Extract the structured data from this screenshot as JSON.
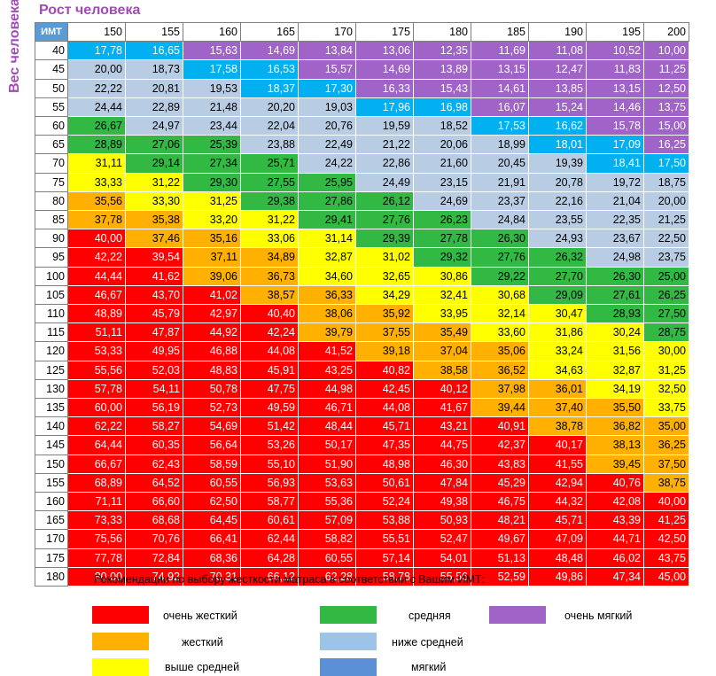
{
  "chart_data": {
    "type": "table",
    "title_top": "Рост человека",
    "title_side": "Вес человека",
    "corner_label": "ИМТ",
    "heights": [
      "150",
      "155",
      "160",
      "165",
      "170",
      "175",
      "180",
      "185",
      "190",
      "195",
      "200"
    ],
    "weights": [
      "40",
      "45",
      "50",
      "55",
      "60",
      "65",
      "70",
      "75",
      "80",
      "85",
      "90",
      "95",
      "100",
      "105",
      "110",
      "115",
      "120",
      "125",
      "130",
      "135",
      "140",
      "145",
      "150",
      "155",
      "160",
      "165",
      "170",
      "175",
      "180"
    ],
    "values": [
      [
        "17,78",
        "16,65",
        "15,63",
        "14,69",
        "13,84",
        "13,06",
        "12,35",
        "11,69",
        "11,08",
        "10,52",
        "10,00"
      ],
      [
        "20,00",
        "18,73",
        "17,58",
        "16,53",
        "15,57",
        "14,69",
        "13,89",
        "13,15",
        "12,47",
        "11,83",
        "11,25"
      ],
      [
        "22,22",
        "20,81",
        "19,53",
        "18,37",
        "17,30",
        "16,33",
        "15,43",
        "14,61",
        "13,85",
        "13,15",
        "12,50"
      ],
      [
        "24,44",
        "22,89",
        "21,48",
        "20,20",
        "19,03",
        "17,96",
        "16,98",
        "16,07",
        "15,24",
        "14,46",
        "13,75"
      ],
      [
        "26,67",
        "24,97",
        "23,44",
        "22,04",
        "20,76",
        "19,59",
        "18,52",
        "17,53",
        "16,62",
        "15,78",
        "15,00"
      ],
      [
        "28,89",
        "27,06",
        "25,39",
        "23,88",
        "22,49",
        "21,22",
        "20,06",
        "18,99",
        "18,01",
        "17,09",
        "16,25"
      ],
      [
        "31,11",
        "29,14",
        "27,34",
        "25,71",
        "24,22",
        "22,86",
        "21,60",
        "20,45",
        "19,39",
        "18,41",
        "17,50"
      ],
      [
        "33,33",
        "31,22",
        "29,30",
        "27,55",
        "25,95",
        "24,49",
        "23,15",
        "21,91",
        "20,78",
        "19,72",
        "18,75"
      ],
      [
        "35,56",
        "33,30",
        "31,25",
        "29,38",
        "27,86",
        "26,12",
        "24,69",
        "23,37",
        "22,16",
        "21,04",
        "20,00"
      ],
      [
        "37,78",
        "35,38",
        "33,20",
        "31,22",
        "29,41",
        "27,76",
        "26,23",
        "24,84",
        "23,55",
        "22,35",
        "21,25"
      ],
      [
        "40,00",
        "37,46",
        "35,16",
        "33,06",
        "31,14",
        "29,39",
        "27,78",
        "26,30",
        "24,93",
        "23,67",
        "22,50"
      ],
      [
        "42,22",
        "39,54",
        "37,11",
        "34,89",
        "32,87",
        "31,02",
        "29,32",
        "27,76",
        "26,32",
        "24,98",
        "23,75"
      ],
      [
        "44,44",
        "41,62",
        "39,06",
        "36,73",
        "34,60",
        "32,65",
        "30,86",
        "29,22",
        "27,70",
        "26,30",
        "25,00"
      ],
      [
        "46,67",
        "43,70",
        "41,02",
        "38,57",
        "36,33",
        "34,29",
        "32,41",
        "30,68",
        "29,09",
        "27,61",
        "26,25"
      ],
      [
        "48,89",
        "45,79",
        "42,97",
        "40,40",
        "38,06",
        "35,92",
        "33,95",
        "32,14",
        "30,47",
        "28,93",
        "27,50"
      ],
      [
        "51,11",
        "47,87",
        "44,92",
        "42,24",
        "39,79",
        "37,55",
        "35,49",
        "33,60",
        "31,86",
        "30,24",
        "28,75"
      ],
      [
        "53,33",
        "49,95",
        "46,88",
        "44,08",
        "41,52",
        "39,18",
        "37,04",
        "35,06",
        "33,24",
        "31,56",
        "30,00"
      ],
      [
        "55,56",
        "52,03",
        "48,83",
        "45,91",
        "43,25",
        "40,82",
        "38,58",
        "36,52",
        "34,63",
        "32,87",
        "31,25"
      ],
      [
        "57,78",
        "54,11",
        "50,78",
        "47,75",
        "44,98",
        "42,45",
        "40,12",
        "37,98",
        "36,01",
        "34,19",
        "32,50"
      ],
      [
        "60,00",
        "56,19",
        "52,73",
        "49,59",
        "46,71",
        "44,08",
        "41,67",
        "39,44",
        "37,40",
        "35,50",
        "33,75"
      ],
      [
        "62,22",
        "58,27",
        "54,69",
        "51,42",
        "48,44",
        "45,71",
        "43,21",
        "40,91",
        "38,78",
        "36,82",
        "35,00"
      ],
      [
        "64,44",
        "60,35",
        "56,64",
        "53,26",
        "50,17",
        "47,35",
        "44,75",
        "42,37",
        "40,17",
        "38,13",
        "36,25"
      ],
      [
        "66,67",
        "62,43",
        "58,59",
        "55,10",
        "51,90",
        "48,98",
        "46,30",
        "43,83",
        "41,55",
        "39,45",
        "37,50"
      ],
      [
        "68,89",
        "64,52",
        "60,55",
        "56,93",
        "53,63",
        "50,61",
        "47,84",
        "45,29",
        "42,94",
        "40,76",
        "38,75"
      ],
      [
        "71,11",
        "66,60",
        "62,50",
        "58,77",
        "55,36",
        "52,24",
        "49,38",
        "46,75",
        "44,32",
        "42,08",
        "40,00"
      ],
      [
        "73,33",
        "68,68",
        "64,45",
        "60,61",
        "57,09",
        "53,88",
        "50,93",
        "48,21",
        "45,71",
        "43,39",
        "41,25"
      ],
      [
        "75,56",
        "70,76",
        "66,41",
        "62,44",
        "58,82",
        "55,51",
        "52,47",
        "49,67",
        "47,09",
        "44,71",
        "42,50"
      ],
      [
        "77,78",
        "72,84",
        "68,36",
        "64,28",
        "60,55",
        "57,14",
        "54,01",
        "51,13",
        "48,48",
        "46,02",
        "43,75"
      ],
      [
        "80,00",
        "74,92",
        "70,31",
        "66,12",
        "62,28",
        "58,78",
        "55,56",
        "52,59",
        "49,86",
        "47,34",
        "45,00"
      ]
    ],
    "colors": [
      [
        "b",
        "b",
        "p",
        "p",
        "p",
        "p",
        "p",
        "p",
        "p",
        "p",
        "p"
      ],
      [
        "lb",
        "lb",
        "b",
        "b",
        "p",
        "p",
        "p",
        "p",
        "p",
        "p",
        "p"
      ],
      [
        "lb",
        "lb",
        "lb",
        "b",
        "b",
        "p",
        "p",
        "p",
        "p",
        "p",
        "p"
      ],
      [
        "lb",
        "lb",
        "lb",
        "lb",
        "lb",
        "b",
        "b",
        "p",
        "p",
        "p",
        "p"
      ],
      [
        "g",
        "lb",
        "lb",
        "lb",
        "lb",
        "lb",
        "lb",
        "b",
        "b",
        "p",
        "p"
      ],
      [
        "g",
        "g",
        "g",
        "lb",
        "lb",
        "lb",
        "lb",
        "lb",
        "b",
        "b",
        "p"
      ],
      [
        "y",
        "g",
        "g",
        "g",
        "lb",
        "lb",
        "lb",
        "lb",
        "lb",
        "b",
        "b"
      ],
      [
        "y",
        "y",
        "g",
        "g",
        "g",
        "lb",
        "lb",
        "lb",
        "lb",
        "lb",
        "lb"
      ],
      [
        "o",
        "y",
        "y",
        "g",
        "g",
        "g",
        "lb",
        "lb",
        "lb",
        "lb",
        "lb"
      ],
      [
        "o",
        "o",
        "y",
        "y",
        "g",
        "g",
        "g",
        "lb",
        "lb",
        "lb",
        "lb"
      ],
      [
        "r",
        "o",
        "o",
        "y",
        "y",
        "g",
        "g",
        "g",
        "lb",
        "lb",
        "lb"
      ],
      [
        "r",
        "r",
        "o",
        "o",
        "y",
        "y",
        "g",
        "g",
        "g",
        "lb",
        "lb"
      ],
      [
        "r",
        "r",
        "o",
        "o",
        "y",
        "y",
        "y",
        "g",
        "g",
        "g",
        "g"
      ],
      [
        "r",
        "r",
        "r",
        "o",
        "o",
        "y",
        "y",
        "y",
        "g",
        "g",
        "g"
      ],
      [
        "r",
        "r",
        "r",
        "r",
        "o",
        "o",
        "y",
        "y",
        "y",
        "g",
        "g"
      ],
      [
        "r",
        "r",
        "r",
        "r",
        "o",
        "o",
        "o",
        "y",
        "y",
        "y",
        "g"
      ],
      [
        "r",
        "r",
        "r",
        "r",
        "r",
        "o",
        "o",
        "o",
        "y",
        "y",
        "y"
      ],
      [
        "r",
        "r",
        "r",
        "r",
        "r",
        "r",
        "o",
        "o",
        "y",
        "y",
        "y"
      ],
      [
        "r",
        "r",
        "r",
        "r",
        "r",
        "r",
        "r",
        "o",
        "o",
        "y",
        "y"
      ],
      [
        "r",
        "r",
        "r",
        "r",
        "r",
        "r",
        "r",
        "o",
        "o",
        "o",
        "y"
      ],
      [
        "r",
        "r",
        "r",
        "r",
        "r",
        "r",
        "r",
        "r",
        "o",
        "o",
        "o"
      ],
      [
        "r",
        "r",
        "r",
        "r",
        "r",
        "r",
        "r",
        "r",
        "r",
        "o",
        "o"
      ],
      [
        "r",
        "r",
        "r",
        "r",
        "r",
        "r",
        "r",
        "r",
        "r",
        "o",
        "o"
      ],
      [
        "r",
        "r",
        "r",
        "r",
        "r",
        "r",
        "r",
        "r",
        "r",
        "r",
        "o"
      ],
      [
        "r",
        "r",
        "r",
        "r",
        "r",
        "r",
        "r",
        "r",
        "r",
        "r",
        "r"
      ],
      [
        "r",
        "r",
        "r",
        "r",
        "r",
        "r",
        "r",
        "r",
        "r",
        "r",
        "r"
      ],
      [
        "r",
        "r",
        "r",
        "r",
        "r",
        "r",
        "r",
        "r",
        "r",
        "r",
        "r"
      ],
      [
        "r",
        "r",
        "r",
        "r",
        "r",
        "r",
        "r",
        "r",
        "r",
        "r",
        "r"
      ],
      [
        "r",
        "r",
        "r",
        "r",
        "r",
        "r",
        "r",
        "r",
        "r",
        "r",
        "r"
      ]
    ]
  },
  "legend": {
    "title": "Рекомендации по выбору жесткости матраса в соответствии с Вашим ИМТ:",
    "items": [
      {
        "label": "очень жесткий",
        "color": "#ff0000"
      },
      {
        "label": "жесткий",
        "color": "#ffb000"
      },
      {
        "label": "выше средней",
        "color": "#ffff00"
      },
      {
        "label": "средняя",
        "color": "#32b944"
      },
      {
        "label": "ниже средней",
        "color": "#9dc3e6"
      },
      {
        "label": "мягкий",
        "color": "#5b8fd6"
      },
      {
        "label": "очень мягкий",
        "color": "#a064c8"
      }
    ]
  }
}
